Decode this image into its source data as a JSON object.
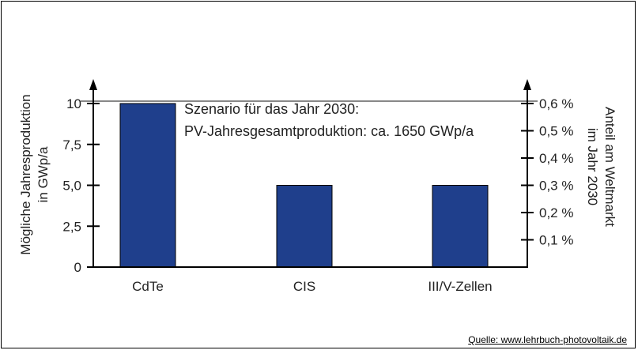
{
  "chart_data": {
    "type": "bar",
    "categories": [
      "CdTe",
      "CIS",
      "III/V-Zellen"
    ],
    "values": [
      10,
      5,
      5
    ],
    "ylim": [
      0,
      10
    ],
    "y_ticks": [
      "0",
      "2,5",
      "5,0",
      "7,5",
      "10"
    ],
    "y_tick_values": [
      0,
      2.5,
      5,
      7.5,
      10
    ],
    "y2_ticks": [
      "0,1 %",
      "0,2 %",
      "0,3 %",
      "0,4 %",
      "0,5 %",
      "0,6 %"
    ],
    "y2_tick_values": [
      0.1,
      0.2,
      0.3,
      0.4,
      0.5,
      0.6
    ],
    "y2lim": [
      0,
      0.6
    ],
    "ylabel_line1": "Mögliche Jahresproduktion",
    "ylabel_line2": "in GWp/a",
    "y2label_line1": "Anteil am Weltmarkt",
    "y2label_line2": "im Jahr 2030",
    "annotation_line1": "Szenario für das Jahr 2030:",
    "annotation_line2": "PV-Jahresgesamtproduktion: ca. 1650 GWp/a",
    "reference_line_value": 10,
    "grid": false,
    "bar_color": "#1f3f8c"
  },
  "source": "Quelle: www.lehrbuch-photovoltaik.de"
}
